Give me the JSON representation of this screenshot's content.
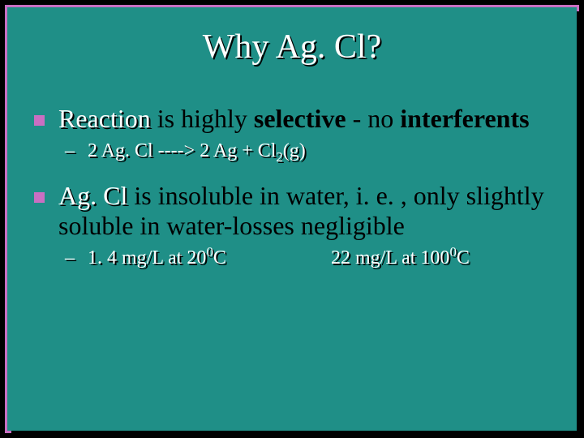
{
  "slide": {
    "background_color": "#1f8f87",
    "border_color": "#c96fc2",
    "bullet_color": "#c96fc2",
    "title": "Why Ag. Cl?",
    "title_color": "#ffffff",
    "body_text_color": "#000000",
    "sub_text_color": "#ffffff",
    "shadow_color": "#000000"
  },
  "items": [
    {
      "prefix": "Reaction",
      "rest_a": " is highly ",
      "bold": "selective",
      "rest_b": " - no ",
      "bold2": "interferents",
      "sub": {
        "pre": "2 Ag. Cl ----> 2 Ag  + Cl",
        "subscript": "2",
        "post": "(g)"
      }
    },
    {
      "prefix": "Ag. Cl",
      "rest_a": " is insoluble in water, i. e. , only slightly soluble in water-losses negligible",
      "sub2": {
        "a_pre": "1. 4 mg/L at 20",
        "a_sup": "0",
        "a_post": "C",
        "b_pre": "22 mg/L at 100",
        "b_sup": "0",
        "b_post": "C"
      }
    }
  ]
}
